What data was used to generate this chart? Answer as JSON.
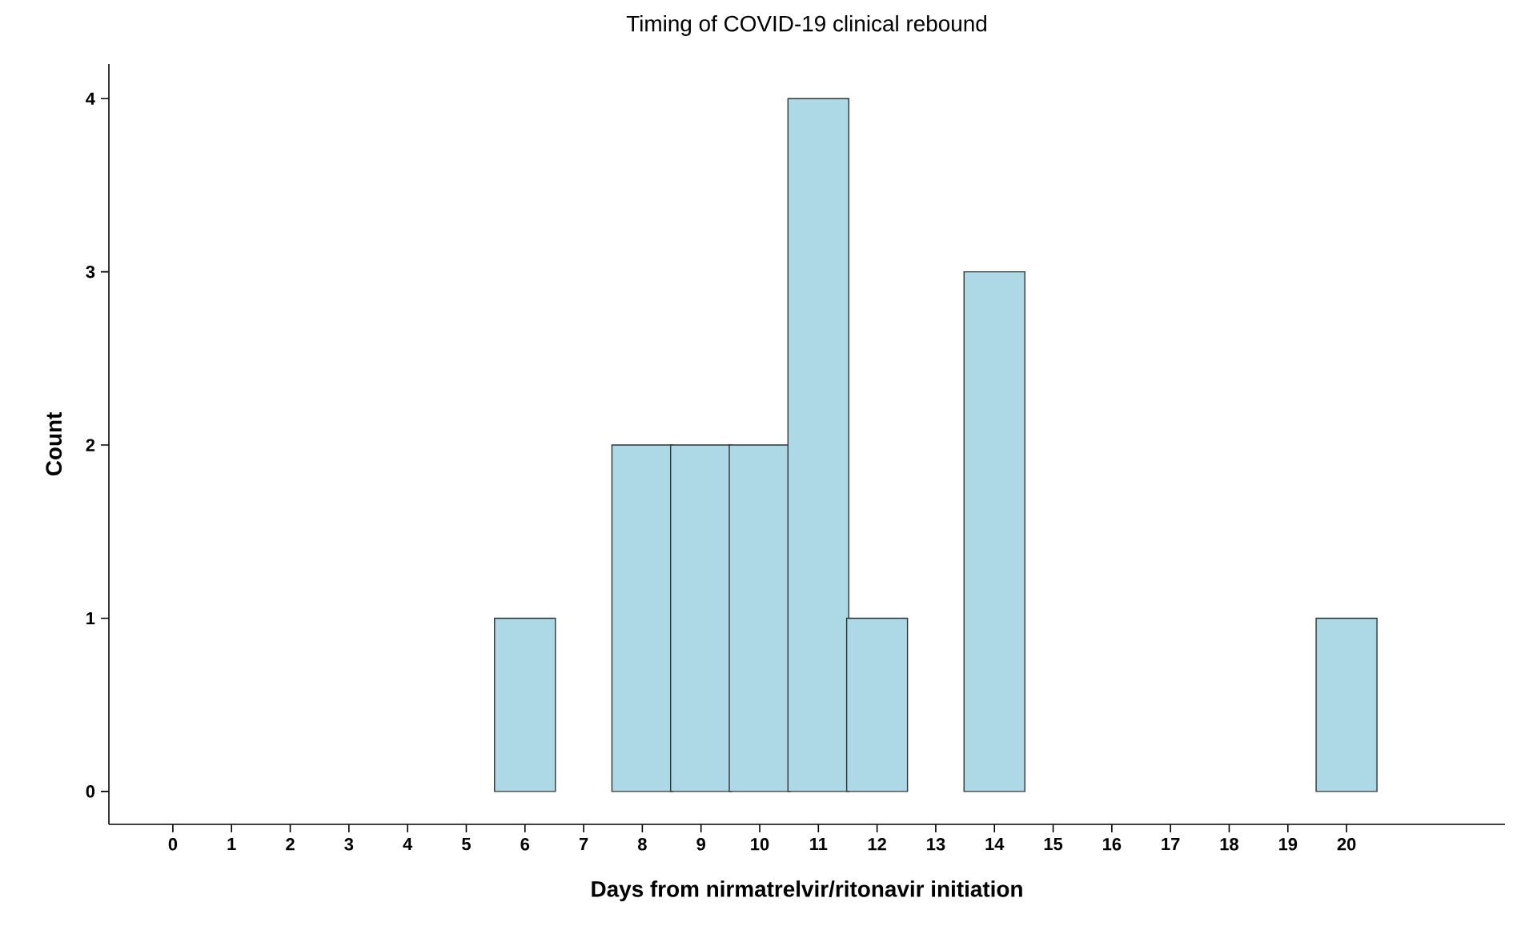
{
  "chart_data": {
    "type": "bar",
    "title": "Timing of COVID-19 clinical rebound",
    "xlabel": "Days from nirmatrelvir/ritonavir initiation",
    "ylabel": "Count",
    "categories": [
      "0",
      "1",
      "2",
      "3",
      "4",
      "5",
      "6",
      "7",
      "8",
      "9",
      "10",
      "11",
      "12",
      "13",
      "14",
      "15",
      "16",
      "17",
      "18",
      "19",
      "20"
    ],
    "values": [
      null,
      null,
      null,
      null,
      null,
      null,
      1,
      null,
      2,
      2,
      2,
      4,
      1,
      null,
      3,
      null,
      null,
      null,
      null,
      null,
      1
    ],
    "color": "#add8e6",
    "ylim": [
      -0.19,
      4.2
    ],
    "yticks": [
      0,
      1,
      2,
      3,
      4
    ],
    "grid": false
  }
}
